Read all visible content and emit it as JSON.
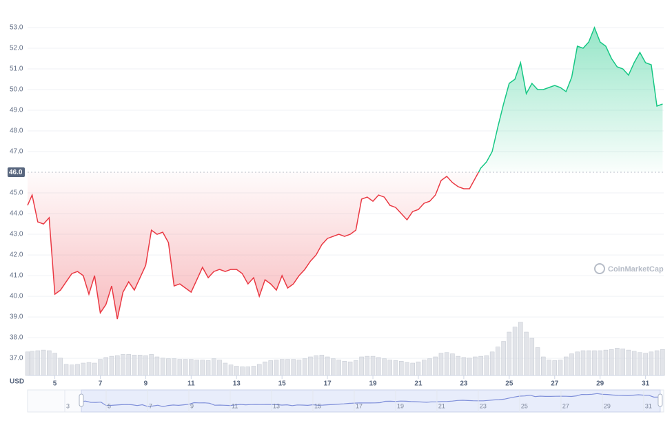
{
  "chart_data": {
    "type": "line",
    "y_axis_label": "USD",
    "watermark": "CoinMarketCap",
    "colors": {
      "up": "#16c784",
      "down": "#ea3943",
      "volume": "#d5d8df"
    },
    "baseline": {
      "value": 46,
      "label": "46.0"
    },
    "grid": true,
    "xlim": [
      3.8,
      31.8
    ],
    "xticks": [
      5,
      7,
      9,
      11,
      13,
      15,
      17,
      19,
      21,
      23,
      25,
      27,
      29,
      31
    ],
    "ylim": [
      36.17,
      54.0
    ],
    "yticks": [
      {
        "value": 37,
        "label": "37.0"
      },
      {
        "value": 38,
        "label": "38.0"
      },
      {
        "value": 39,
        "label": "39.0"
      },
      {
        "value": 40,
        "label": "40.0"
      },
      {
        "value": 41,
        "label": "41.0"
      },
      {
        "value": 42,
        "label": "42.0"
      },
      {
        "value": 43,
        "label": "43.0"
      },
      {
        "value": 44,
        "label": "44.0"
      },
      {
        "value": 45,
        "label": "45.0"
      },
      {
        "value": 47,
        "label": "47.0"
      },
      {
        "value": 48,
        "label": "48.0"
      },
      {
        "value": 49,
        "label": "49.0"
      },
      {
        "value": 50,
        "label": "50.0"
      },
      {
        "value": 51,
        "label": "51.0"
      },
      {
        "value": 52,
        "label": "52.0"
      },
      {
        "value": 53,
        "label": "53.0"
      }
    ],
    "vlim": [
      0,
      100
    ],
    "x": [
      3.8,
      4,
      4.25,
      4.5,
      4.75,
      5,
      5.25,
      5.5,
      5.75,
      6,
      6.25,
      6.5,
      6.75,
      7,
      7.25,
      7.5,
      7.75,
      8,
      8.25,
      8.5,
      8.75,
      9,
      9.25,
      9.5,
      9.75,
      10,
      10.25,
      10.5,
      10.75,
      11,
      11.25,
      11.5,
      11.75,
      12,
      12.25,
      12.5,
      12.75,
      13,
      13.25,
      13.5,
      13.75,
      14,
      14.25,
      14.5,
      14.75,
      15,
      15.25,
      15.5,
      15.75,
      16,
      16.25,
      16.5,
      16.75,
      17,
      17.25,
      17.5,
      17.75,
      18,
      18.25,
      18.5,
      18.75,
      19,
      19.25,
      19.5,
      19.75,
      20,
      20.25,
      20.5,
      20.75,
      21,
      21.25,
      21.5,
      21.75,
      22,
      22.25,
      22.5,
      22.75,
      23,
      23.25,
      23.5,
      23.75,
      24,
      24.25,
      24.5,
      24.75,
      25,
      25.25,
      25.5,
      25.75,
      26,
      26.25,
      26.5,
      26.75,
      27,
      27.25,
      27.5,
      27.75,
      28,
      28.25,
      28.5,
      28.75,
      29,
      29.25,
      29.5,
      29.75,
      30,
      30.25,
      30.5,
      30.75,
      31,
      31.25,
      31.5,
      31.75
    ],
    "values": [
      44.4,
      44.9,
      43.6,
      43.5,
      43.8,
      40.1,
      40.3,
      40.7,
      41.1,
      41.2,
      41.0,
      40.1,
      41.0,
      39.2,
      39.6,
      40.5,
      38.9,
      40.2,
      40.7,
      40.3,
      40.9,
      41.5,
      43.2,
      43.0,
      43.1,
      42.6,
      40.5,
      40.6,
      40.4,
      40.2,
      40.8,
      41.4,
      40.9,
      41.2,
      41.3,
      41.2,
      41.3,
      41.3,
      41.1,
      40.6,
      40.9,
      40.0,
      40.8,
      40.6,
      40.3,
      41.0,
      40.4,
      40.6,
      41.0,
      41.3,
      41.7,
      42.0,
      42.5,
      42.8,
      42.9,
      43.0,
      42.9,
      43.0,
      43.2,
      44.7,
      44.8,
      44.6,
      44.9,
      44.8,
      44.4,
      44.3,
      44.0,
      43.7,
      44.1,
      44.2,
      44.5,
      44.6,
      44.9,
      45.6,
      45.8,
      45.5,
      45.3,
      45.2,
      45.2,
      45.7,
      46.2,
      46.5,
      47.0,
      48.2,
      49.3,
      50.3,
      50.5,
      51.3,
      49.8,
      50.3,
      50.0,
      50.0,
      50.1,
      50.2,
      50.1,
      49.9,
      50.6,
      52.1,
      52.0,
      52.3,
      53.0,
      52.3,
      52.1,
      51.5,
      51.1,
      51.0,
      50.7,
      51.3,
      51.8,
      51.3,
      51.2,
      49.2,
      49.3
    ],
    "volume": [
      38,
      39,
      40,
      41,
      40,
      36,
      28,
      18,
      17,
      18,
      20,
      21,
      20,
      26,
      29,
      31,
      32,
      34,
      34,
      33,
      33,
      32,
      34,
      30,
      28,
      27,
      27,
      26,
      26,
      26,
      25,
      25,
      24,
      27,
      25,
      20,
      17,
      15,
      14,
      14,
      15,
      18,
      22,
      24,
      25,
      26,
      26,
      26,
      25,
      27,
      30,
      32,
      33,
      30,
      27,
      25,
      23,
      22,
      24,
      30,
      31,
      31,
      29,
      27,
      25,
      24,
      23,
      21,
      20,
      22,
      25,
      27,
      30,
      36,
      37,
      35,
      31,
      29,
      28,
      30,
      31,
      32,
      38,
      46,
      55,
      70,
      78,
      86,
      70,
      60,
      45,
      30,
      25,
      24,
      25,
      30,
      35,
      38,
      40,
      40,
      40,
      40,
      41,
      42,
      44,
      43,
      41,
      39,
      37,
      36,
      38,
      40,
      42
    ],
    "navigator": {
      "xlim": [
        1.2,
        31.97
      ],
      "xticks": [
        3,
        5,
        7,
        9,
        11,
        13,
        15,
        17,
        19,
        21,
        23,
        25,
        27,
        29,
        31
      ]
    }
  }
}
